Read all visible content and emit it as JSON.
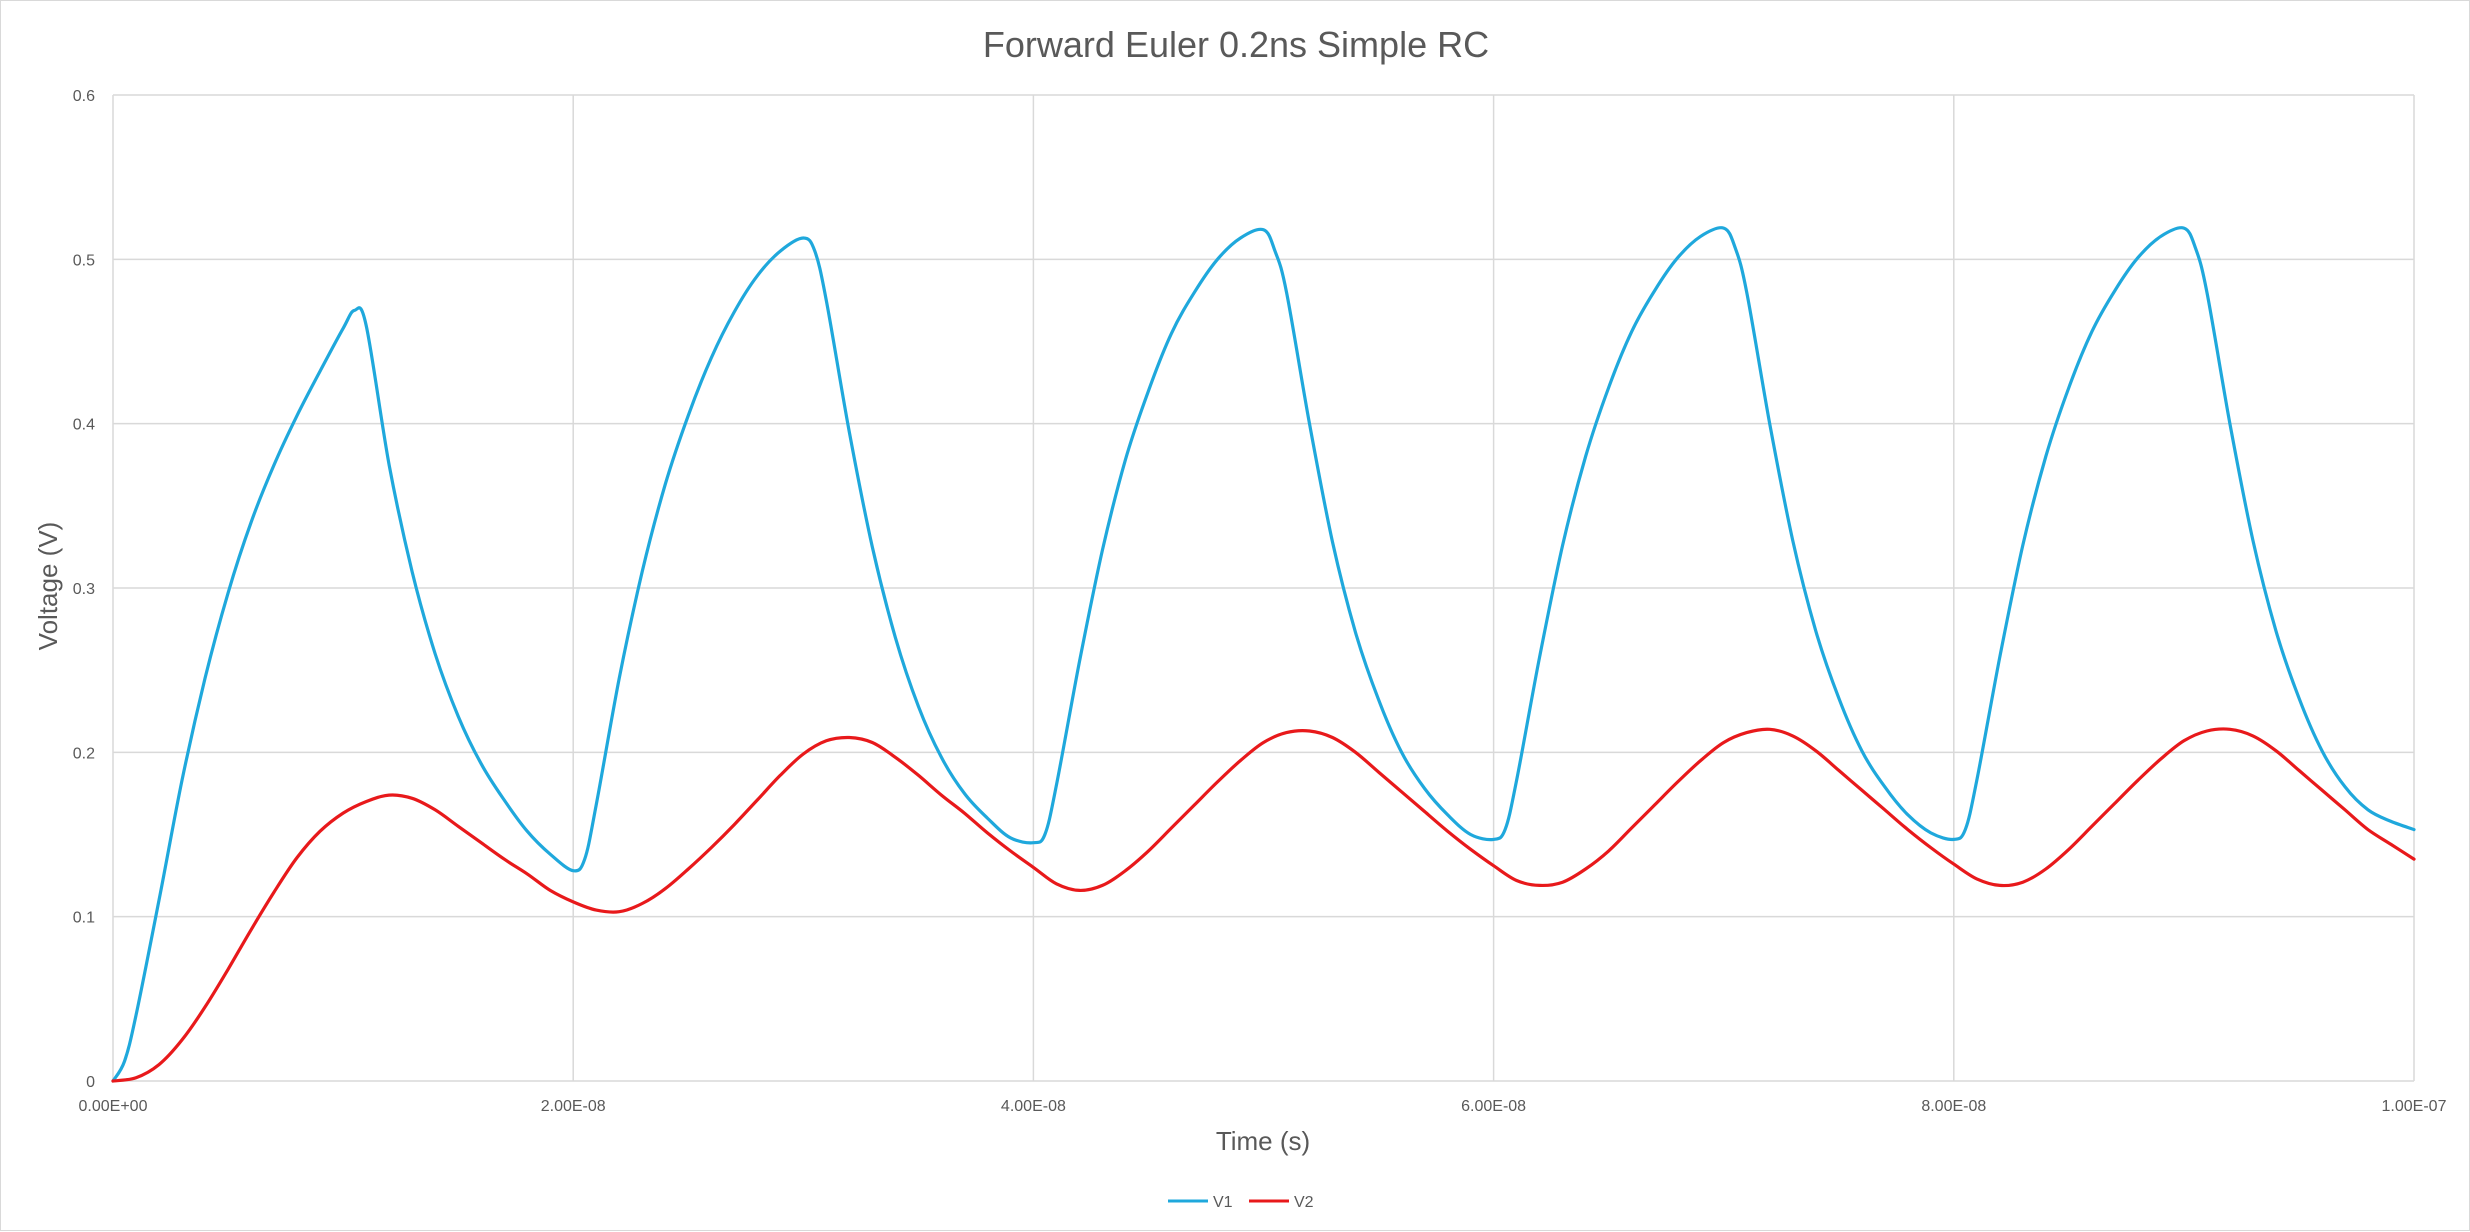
{
  "chart_data": {
    "type": "line",
    "title": "Forward Euler 0.2ns Simple RC",
    "xlabel": "Time (s)",
    "ylabel": "Voltage (V)",
    "xlim": [
      0,
      1e-07
    ],
    "ylim": [
      0,
      0.6
    ],
    "x_ticks": [
      "0.00E+00",
      "2.00E-08",
      "4.00E-08",
      "6.00E-08",
      "8.00E-08",
      "1.00E-07"
    ],
    "y_ticks": [
      "0",
      "0.1",
      "0.2",
      "0.3",
      "0.4",
      "0.5",
      "0.6"
    ],
    "grid": true,
    "legend": "bottom",
    "x_unit_scale": 1e-09,
    "series": [
      {
        "name": "V1",
        "color": "#1fa8dc",
        "x": [
          0,
          0.5,
          1,
          2,
          3,
          4,
          5,
          6,
          7,
          8,
          9,
          10,
          10.5,
          11,
          12,
          13,
          14,
          15,
          16,
          17,
          18,
          19,
          20,
          20.5,
          21,
          22,
          23,
          24,
          25,
          26,
          27,
          28,
          29,
          30,
          30.5,
          31,
          32,
          33,
          34,
          35,
          36,
          37,
          38,
          39,
          40,
          40.5,
          41,
          42,
          43,
          44,
          45,
          46,
          47,
          48,
          49,
          50,
          50.5,
          51,
          52,
          53,
          54,
          55,
          56,
          57,
          58,
          59,
          60,
          60.5,
          61,
          62,
          63,
          64,
          65,
          66,
          67,
          68,
          69,
          70,
          70.5,
          71,
          72,
          73,
          74,
          75,
          76,
          77,
          78,
          79,
          80,
          80.5,
          81,
          82,
          83,
          84,
          85,
          86,
          87,
          88,
          89,
          90,
          90.5,
          91,
          92,
          93,
          94,
          95,
          96,
          97,
          98,
          99,
          100
        ],
        "y": [
          0,
          0.012,
          0.04,
          0.11,
          0.183,
          0.245,
          0.297,
          0.34,
          0.375,
          0.405,
          0.432,
          0.458,
          0.469,
          0.46,
          0.375,
          0.31,
          0.26,
          0.222,
          0.193,
          0.171,
          0.152,
          0.138,
          0.128,
          0.135,
          0.168,
          0.245,
          0.31,
          0.363,
          0.405,
          0.44,
          0.468,
          0.49,
          0.505,
          0.513,
          0.505,
          0.475,
          0.395,
          0.325,
          0.27,
          0.228,
          0.197,
          0.175,
          0.16,
          0.148,
          0.145,
          0.15,
          0.18,
          0.255,
          0.323,
          0.378,
          0.42,
          0.455,
          0.48,
          0.5,
          0.513,
          0.518,
          0.505,
          0.48,
          0.4,
          0.328,
          0.273,
          0.232,
          0.2,
          0.178,
          0.162,
          0.15,
          0.147,
          0.153,
          0.183,
          0.258,
          0.326,
          0.38,
          0.422,
          0.456,
          0.481,
          0.501,
          0.514,
          0.519,
          0.507,
          0.48,
          0.4,
          0.329,
          0.274,
          0.233,
          0.201,
          0.179,
          0.162,
          0.151,
          0.147,
          0.153,
          0.183,
          0.258,
          0.326,
          0.38,
          0.422,
          0.456,
          0.481,
          0.501,
          0.514,
          0.519,
          0.507,
          0.48,
          0.4,
          0.329,
          0.274,
          0.233,
          0.201,
          0.179,
          0.165,
          0.158,
          0.153
        ]
      },
      {
        "name": "V2",
        "color": "#e8191b",
        "x": [
          0,
          1,
          2,
          3,
          4,
          5,
          6,
          7,
          8,
          9,
          10,
          11,
          12,
          13,
          14,
          15,
          16,
          17,
          18,
          19,
          20,
          21,
          22,
          23,
          24,
          25,
          26,
          27,
          28,
          29,
          30,
          31,
          32,
          33,
          34,
          35,
          36,
          37,
          38,
          39,
          40,
          41,
          42,
          43,
          44,
          45,
          46,
          47,
          48,
          49,
          50,
          51,
          52,
          53,
          54,
          55,
          56,
          57,
          58,
          59,
          60,
          61,
          62,
          63,
          64,
          65,
          66,
          67,
          68,
          69,
          70,
          71,
          72,
          73,
          74,
          75,
          76,
          77,
          78,
          79,
          80,
          81,
          82,
          83,
          84,
          85,
          86,
          87,
          88,
          89,
          90,
          91,
          92,
          93,
          94,
          95,
          96,
          97,
          98,
          99,
          100
        ],
        "y": [
          0,
          0.002,
          0.01,
          0.025,
          0.045,
          0.068,
          0.092,
          0.115,
          0.136,
          0.152,
          0.163,
          0.17,
          0.174,
          0.172,
          0.165,
          0.155,
          0.145,
          0.135,
          0.126,
          0.116,
          0.109,
          0.104,
          0.103,
          0.108,
          0.117,
          0.129,
          0.142,
          0.156,
          0.171,
          0.186,
          0.199,
          0.207,
          0.209,
          0.206,
          0.197,
          0.186,
          0.174,
          0.163,
          0.151,
          0.14,
          0.13,
          0.12,
          0.116,
          0.119,
          0.128,
          0.14,
          0.154,
          0.168,
          0.182,
          0.195,
          0.206,
          0.212,
          0.213,
          0.209,
          0.2,
          0.188,
          0.176,
          0.164,
          0.152,
          0.141,
          0.131,
          0.122,
          0.119,
          0.121,
          0.129,
          0.14,
          0.154,
          0.168,
          0.182,
          0.195,
          0.206,
          0.212,
          0.214,
          0.21,
          0.201,
          0.189,
          0.177,
          0.165,
          0.153,
          0.142,
          0.132,
          0.123,
          0.119,
          0.121,
          0.129,
          0.141,
          0.155,
          0.169,
          0.183,
          0.196,
          0.207,
          0.213,
          0.214,
          0.21,
          0.201,
          0.189,
          0.177,
          0.165,
          0.153,
          0.144,
          0.135
        ]
      }
    ]
  }
}
